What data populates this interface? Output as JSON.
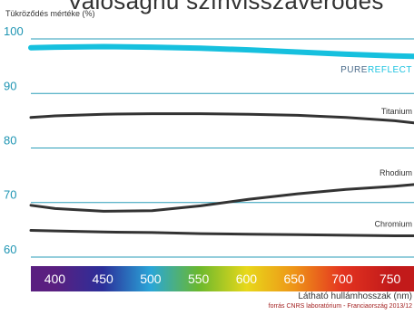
{
  "chart_data": {
    "type": "line",
    "title": "Valósághű színvisszaverődés",
    "ylabel": "Tükröződés mértéke (%)",
    "xlabel": "Látható hullámhosszak (nm)",
    "source": "forrás CNRS laboratórium - Franciaország 2013/12",
    "ylim": [
      59,
      101
    ],
    "xlim": [
      375,
      770
    ],
    "y_ticks": [
      100,
      90,
      80,
      70,
      60
    ],
    "grid": true,
    "x_ticks": [
      {
        "label": "400",
        "color": "#5a1f80"
      },
      {
        "label": "450",
        "color": "#2b2f9a"
      },
      {
        "label": "500",
        "color": "#2aa6d8"
      },
      {
        "label": "550",
        "color": "#6ab82e"
      },
      {
        "label": "600",
        "color": "#e8d81a"
      },
      {
        "label": "650",
        "color": "#ee9418"
      },
      {
        "label": "700",
        "color": "#e43420"
      },
      {
        "label": "750",
        "color": "#c21a1a"
      }
    ],
    "series": [
      {
        "name": "PUREREFLECT",
        "color": "#16c0de",
        "width": 6,
        "x": [
          375,
          400,
          450,
          500,
          550,
          600,
          650,
          700,
          750,
          770
        ],
        "y": [
          98.4,
          98.5,
          98.6,
          98.5,
          98.3,
          98.0,
          97.6,
          97.2,
          96.9,
          96.8
        ]
      },
      {
        "name": "Titanium",
        "color": "#333333",
        "width": 3,
        "x": [
          375,
          400,
          450,
          500,
          550,
          600,
          650,
          700,
          750,
          770
        ],
        "y": [
          85.6,
          85.9,
          86.2,
          86.3,
          86.3,
          86.2,
          86.0,
          85.6,
          85.0,
          84.6
        ]
      },
      {
        "name": "Rhodium",
        "color": "#333333",
        "width": 3,
        "x": [
          375,
          400,
          450,
          500,
          550,
          600,
          650,
          700,
          750,
          770
        ],
        "y": [
          69.5,
          68.9,
          68.4,
          68.5,
          69.4,
          70.6,
          71.6,
          72.4,
          73.0,
          73.3
        ]
      },
      {
        "name": "Chromium",
        "color": "#333333",
        "width": 3,
        "x": [
          375,
          400,
          450,
          500,
          550,
          600,
          650,
          700,
          750,
          770
        ],
        "y": [
          64.9,
          64.8,
          64.6,
          64.5,
          64.3,
          64.2,
          64.1,
          64.0,
          63.9,
          63.9
        ]
      }
    ],
    "brand": {
      "part1": "PURE",
      "part2": "REFLECT"
    }
  }
}
